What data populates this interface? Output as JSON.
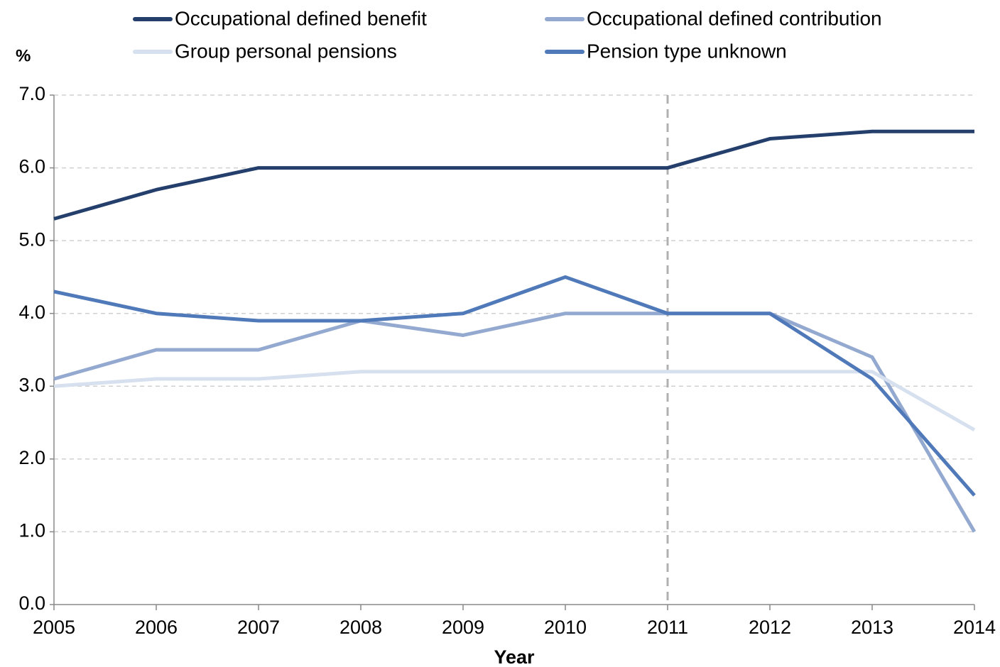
{
  "chart_data": {
    "type": "line",
    "y_label": "%",
    "x_label": "Year",
    "x": [
      2005,
      2006,
      2007,
      2008,
      2009,
      2010,
      2011,
      2012,
      2013,
      2014
    ],
    "xlim": [
      2005,
      2014
    ],
    "xticks": [
      2005,
      2006,
      2007,
      2008,
      2009,
      2010,
      2011,
      2012,
      2013,
      2014
    ],
    "ylim": [
      0,
      7
    ],
    "yticks": [
      {
        "value": 0,
        "label": "0.0"
      },
      {
        "value": 1,
        "label": "1.0"
      },
      {
        "value": 2,
        "label": "2.0"
      },
      {
        "value": 3,
        "label": "3.0"
      },
      {
        "value": 4,
        "label": "4.0"
      },
      {
        "value": 5,
        "label": "5.0"
      },
      {
        "value": 6,
        "label": "6.0"
      },
      {
        "value": 7,
        "label": "7.0"
      }
    ],
    "grid": true,
    "vlines": [
      2011
    ],
    "series": [
      {
        "name": "Occupational defined benefit",
        "color": "#243f6b",
        "values": [
          5.3,
          5.7,
          6.0,
          6.0,
          6.0,
          6.0,
          6.0,
          6.4,
          6.5,
          6.5
        ]
      },
      {
        "name": "Occupational defined contribution",
        "color": "#93a9d0",
        "values": [
          3.1,
          3.5,
          3.5,
          3.9,
          3.7,
          4.0,
          4.0,
          4.0,
          3.4,
          1.0
        ]
      },
      {
        "name": "Group personal pensions",
        "color": "#d6e0ef",
        "values": [
          3.0,
          3.1,
          3.1,
          3.2,
          3.2,
          3.2,
          3.2,
          3.2,
          3.2,
          2.4
        ]
      },
      {
        "name": "Pension type unknown",
        "color": "#4f79b8",
        "values": [
          4.3,
          4.0,
          3.9,
          3.9,
          4.0,
          4.5,
          4.0,
          4.0,
          3.1,
          1.5
        ]
      }
    ]
  }
}
